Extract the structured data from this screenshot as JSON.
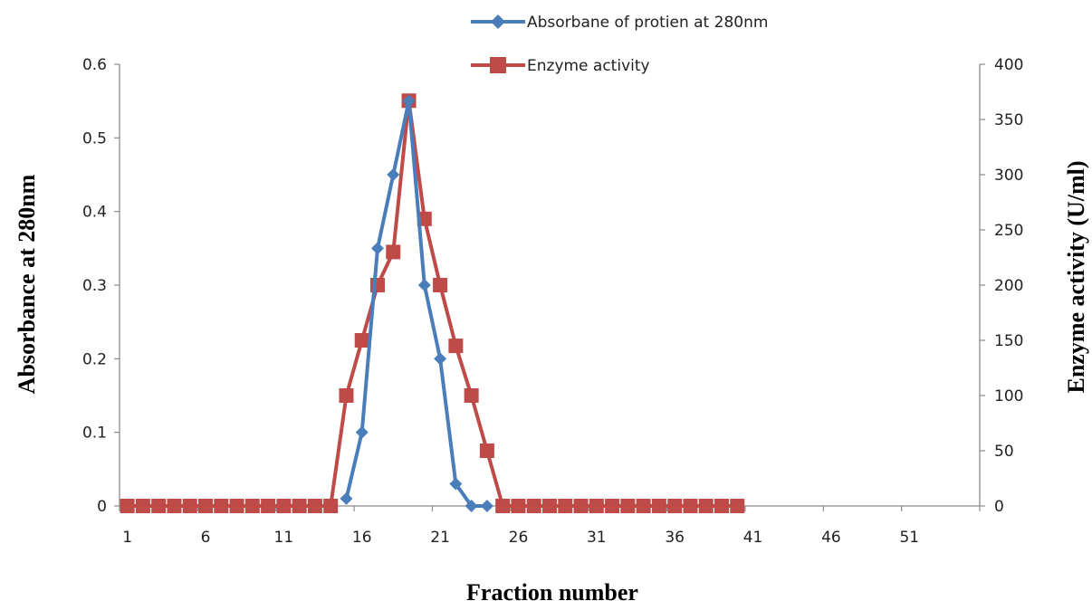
{
  "chart_data": {
    "type": "line",
    "xlabel": "Fraction number",
    "ylabel_left": "Absorbance at 280nm",
    "ylabel_right": "Enzyme activity  (U/ml)",
    "x_axis": {
      "min": 0.5,
      "max": 55.5,
      "tick_labels": [
        "1",
        "6",
        "11",
        "16",
        "21",
        "26",
        "31",
        "36",
        "41",
        "46",
        "51"
      ]
    },
    "y_left": {
      "min": 0,
      "max": 0.6,
      "tick_labels": [
        "0",
        "0.1",
        "0.2",
        "0.3",
        "0.4",
        "0.5",
        "0.6"
      ]
    },
    "y_right": {
      "min": 0,
      "max": 400,
      "tick_labels": [
        "0",
        "50",
        "100",
        "150",
        "200",
        "250",
        "300",
        "350",
        "400"
      ]
    },
    "grid": false,
    "legend_position": "top-center",
    "series": [
      {
        "name": "Absorbane of protien at 280nm",
        "axis": "left",
        "color": "#4a7ebb",
        "marker": "diamond",
        "x": [
          15,
          16,
          17,
          18,
          19,
          20,
          21,
          22,
          23,
          24
        ],
        "y": [
          0.01,
          0.1,
          0.35,
          0.45,
          0.55,
          0.3,
          0.2,
          0.03,
          0.0,
          0.0
        ]
      },
      {
        "name": "Enzyme activity",
        "axis": "right",
        "color": "#be4b48",
        "marker": "square",
        "x": [
          1,
          2,
          3,
          4,
          5,
          6,
          7,
          8,
          9,
          10,
          11,
          12,
          13,
          14,
          15,
          16,
          17,
          18,
          19,
          20,
          21,
          22,
          23,
          24,
          25,
          26,
          27,
          28,
          29,
          30,
          31,
          32,
          33,
          34,
          35,
          36,
          37,
          38,
          39,
          40
        ],
        "y": [
          0,
          0,
          0,
          0,
          0,
          0,
          0,
          0,
          0,
          0,
          0,
          0,
          0,
          0,
          100,
          150,
          200,
          230,
          367,
          260,
          200,
          145,
          100,
          50,
          0,
          0,
          0,
          0,
          0,
          0,
          0,
          0,
          0,
          0,
          0,
          0,
          0,
          0,
          0,
          0
        ]
      }
    ]
  }
}
